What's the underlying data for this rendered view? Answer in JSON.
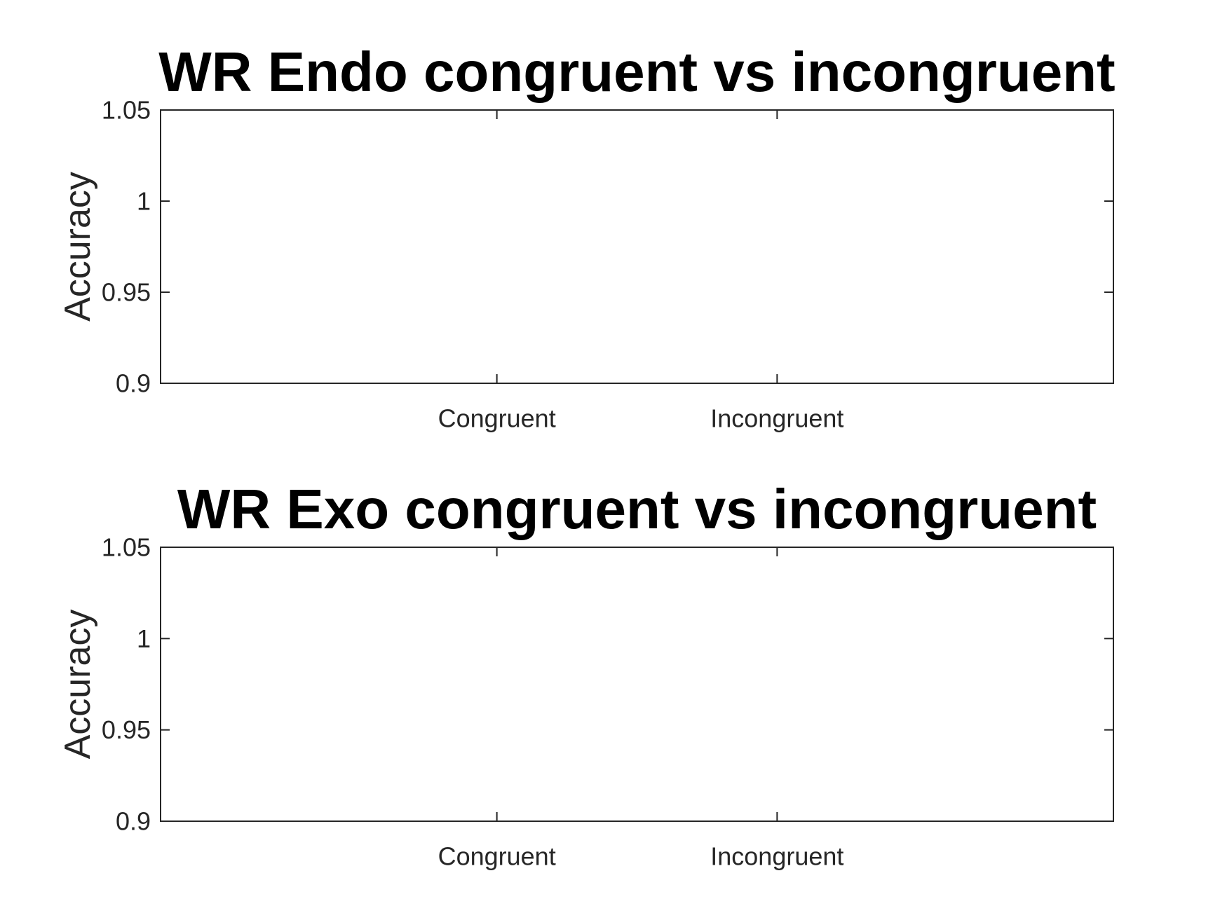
{
  "chart_data": [
    {
      "type": "bar",
      "title": "WR Endo congruent vs incongruent",
      "xlabel": "",
      "ylabel": "Accuracy",
      "categories": [
        "Congruent",
        "Incongruent"
      ],
      "x_positions": [
        1,
        2
      ],
      "xlim": [
        -0.2,
        3.2
      ],
      "ylim": [
        0.9,
        1.05
      ],
      "yticks": [
        0.9,
        0.95,
        1,
        1.05
      ],
      "ytick_labels": [
        "0.9",
        "0.95",
        "1",
        "1.05"
      ],
      "series": [],
      "grid": false,
      "legend": "none",
      "colors": {
        "axes": "#262626",
        "title": "#000000",
        "background": "#ffffff"
      }
    },
    {
      "type": "bar",
      "title": "WR Exo congruent vs incongruent",
      "xlabel": "",
      "ylabel": "Accuracy",
      "categories": [
        "Congruent",
        "Incongruent"
      ],
      "x_positions": [
        1,
        2
      ],
      "xlim": [
        -0.2,
        3.2
      ],
      "ylim": [
        0.9,
        1.05
      ],
      "yticks": [
        0.9,
        0.95,
        1,
        1.05
      ],
      "ytick_labels": [
        "0.9",
        "0.95",
        "1",
        "1.05"
      ],
      "series": [],
      "grid": false,
      "legend": "none",
      "colors": {
        "axes": "#262626",
        "title": "#000000",
        "background": "#ffffff"
      }
    }
  ]
}
